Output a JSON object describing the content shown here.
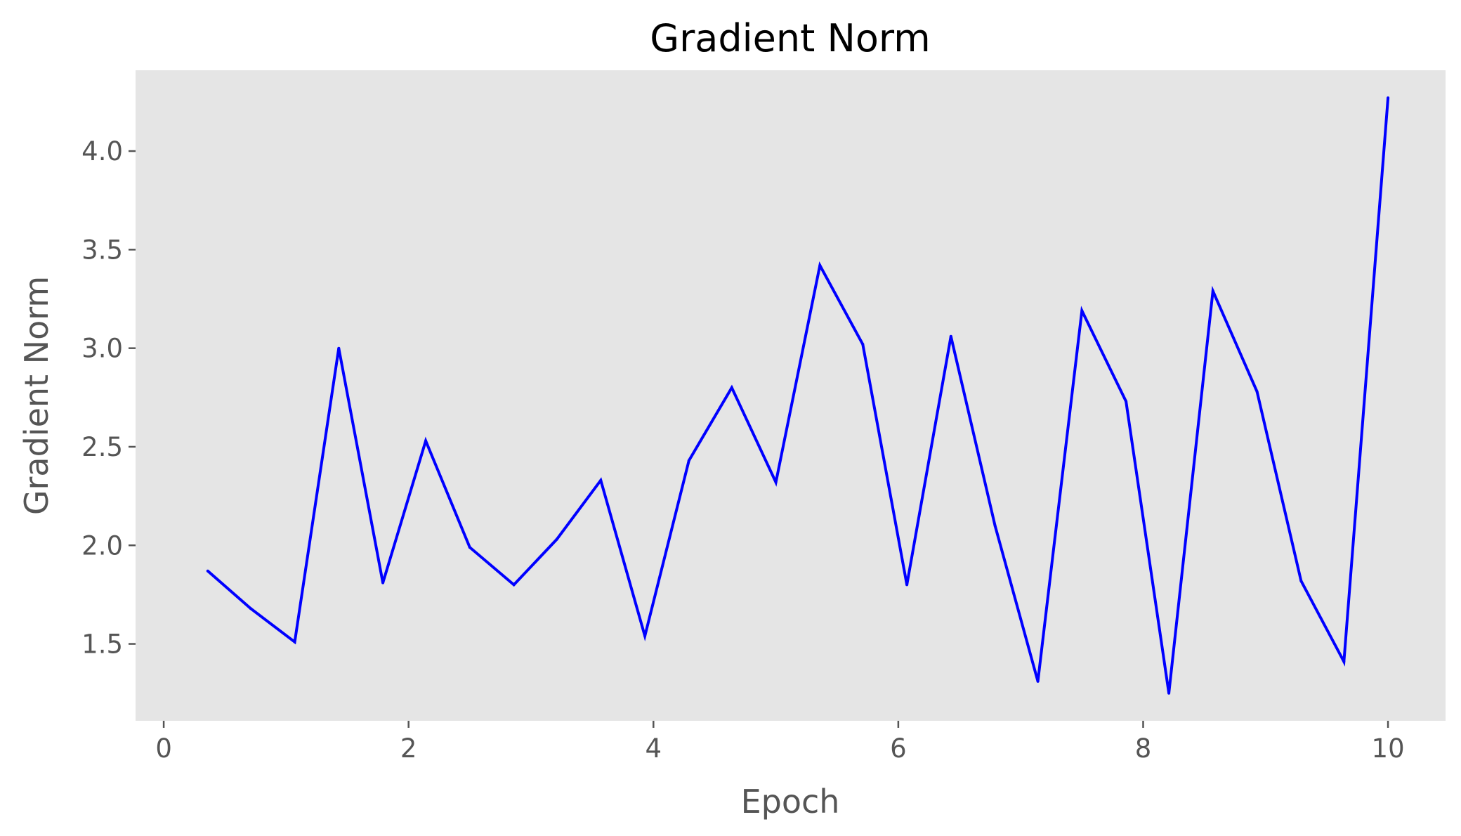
{
  "chart_data": {
    "type": "line",
    "title": "Gradient Norm",
    "xlabel": "Epoch",
    "ylabel": "Gradient Norm",
    "xlim": [
      -0.23,
      10.47
    ],
    "ylim": [
      1.11,
      4.41
    ],
    "xticks": [
      0,
      2,
      4,
      6,
      8,
      10
    ],
    "xtick_labels": [
      "0",
      "2",
      "4",
      "6",
      "8",
      "10"
    ],
    "yticks": [
      1.5,
      2.0,
      2.5,
      3.0,
      3.5,
      4.0
    ],
    "ytick_labels": [
      "1.5",
      "2.0",
      "2.5",
      "3.0",
      "3.5",
      "4.0"
    ],
    "grid": false,
    "background": "#e5e5e5",
    "series": [
      {
        "color": "#0000ff",
        "x": [
          0.36,
          0.71,
          1.07,
          1.43,
          1.79,
          2.14,
          2.5,
          2.86,
          3.21,
          3.57,
          3.93,
          4.29,
          4.64,
          5.0,
          5.36,
          5.71,
          6.07,
          6.43,
          6.79,
          7.14,
          7.5,
          7.86,
          8.21,
          8.57,
          8.93,
          9.29,
          9.64,
          10.0
        ],
        "y": [
          1.87,
          1.68,
          1.51,
          3.0,
          1.81,
          2.53,
          1.99,
          1.8,
          2.03,
          2.33,
          1.54,
          2.43,
          2.8,
          2.32,
          3.42,
          3.02,
          1.8,
          3.06,
          2.1,
          1.31,
          3.19,
          2.73,
          1.25,
          3.29,
          2.78,
          1.82,
          1.41,
          4.27
        ]
      }
    ]
  }
}
